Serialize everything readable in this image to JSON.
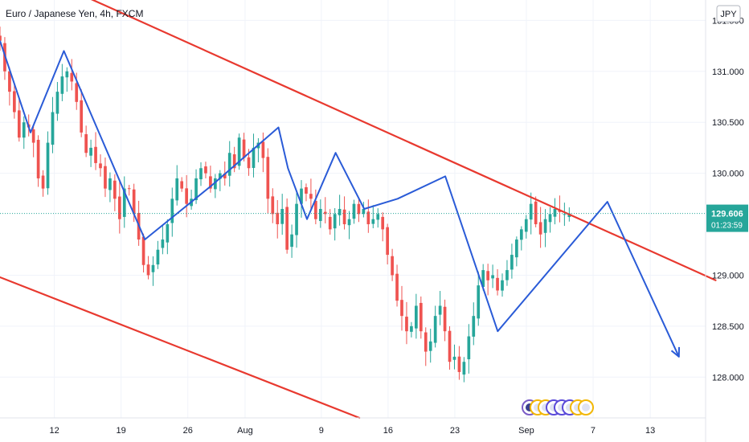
{
  "header": {
    "title": "Euro / Japanese Yen, 4h, FXCM",
    "currency_badge": "JPY"
  },
  "price_label": {
    "price": "129.606",
    "countdown": "01:23:59"
  },
  "colors": {
    "bull": "#26a69a",
    "bear": "#ef5350",
    "channel": "#e8392f",
    "zigzag": "#2a5bd7",
    "price_tag": "#26a69a"
  },
  "icons": [
    "events-icon-1",
    "events-icon-2",
    "events-icon-3",
    "events-icon-4",
    "events-icon-5",
    "events-icon-6",
    "events-icon-7",
    "events-icon-8"
  ],
  "chart_data": {
    "type": "candlestick",
    "x_ticks": [
      {
        "label": "12",
        "t": 12
      },
      {
        "label": "19",
        "t": 19
      },
      {
        "label": "26",
        "t": 26
      },
      {
        "label": "Aug",
        "t": 32
      },
      {
        "label": "9",
        "t": 40
      },
      {
        "label": "16",
        "t": 47
      },
      {
        "label": "23",
        "t": 54
      },
      {
        "label": "Sep",
        "t": 61.5
      },
      {
        "label": "7",
        "t": 68.5
      },
      {
        "label": "13",
        "t": 74.5
      }
    ],
    "y_ticks": [
      {
        "label": "131.500",
        "v": 131.5
      },
      {
        "label": "131.000",
        "v": 131.0
      },
      {
        "label": "130.500",
        "v": 130.5
      },
      {
        "label": "130.000",
        "v": 130.0
      },
      {
        "label": "129.000",
        "v": 129.0
      },
      {
        "label": "128.500",
        "v": 128.5
      },
      {
        "label": "128.000",
        "v": 128.0
      }
    ],
    "x_range": [
      6.3,
      80.3
    ],
    "y_range": [
      127.6,
      131.7
    ],
    "last_price": 129.606,
    "closes": [
      131.3,
      131.0,
      130.8,
      130.6,
      130.35,
      130.5,
      130.45,
      130.3,
      129.95,
      129.85,
      130.3,
      130.6,
      130.8,
      130.95,
      131.0,
      130.9,
      130.7,
      130.4,
      130.2,
      130.25,
      130.1,
      130.05,
      129.85,
      129.95,
      129.75,
      129.55,
      129.85,
      129.85,
      129.6,
      129.35,
      129.1,
      129.0,
      129.1,
      129.25,
      129.35,
      129.5,
      129.75,
      129.95,
      129.85,
      129.7,
      129.75,
      129.95,
      130.05,
      130.0,
      129.85,
      129.95,
      130.0,
      129.95,
      130.2,
      130.05,
      130.35,
      130.15,
      130.05,
      130.25,
      130.3,
      130.15,
      129.75,
      129.6,
      129.5,
      129.65,
      129.25,
      129.4,
      129.7,
      129.85,
      129.8,
      129.75,
      129.55,
      129.65,
      129.6,
      129.45,
      129.6,
      129.65,
      129.5,
      129.55,
      129.7,
      129.6,
      129.65,
      129.5,
      129.55,
      129.6,
      129.45,
      129.2,
      129.0,
      128.75,
      128.6,
      128.45,
      128.5,
      128.7,
      128.45,
      128.25,
      128.35,
      128.6,
      128.7,
      128.45,
      128.15,
      128.2,
      128.05,
      128.15,
      128.4,
      128.6,
      128.9,
      129.05,
      128.95,
      129.0,
      128.85,
      128.95,
      129.05,
      129.2,
      129.35,
      129.45,
      129.55,
      129.7,
      129.5,
      129.4,
      129.55,
      129.6,
      129.65,
      129.62,
      129.6,
      129.606
    ],
    "series": [
      {
        "kind": "channel-line",
        "points": [
          [
            12.25,
            131.86
          ],
          [
            81.35,
            128.95
          ]
        ]
      },
      {
        "kind": "channel-line",
        "points": [
          [
            6.3,
            128.98
          ],
          [
            44.0,
            127.6
          ]
        ]
      },
      {
        "kind": "zigzag",
        "points": [
          [
            6.3,
            131.3
          ],
          [
            9.5,
            130.4
          ],
          [
            13.0,
            131.2
          ],
          [
            21.5,
            129.35
          ],
          [
            28.5,
            129.88
          ],
          [
            35.5,
            130.45
          ],
          [
            36.5,
            130.05
          ],
          [
            38.5,
            129.55
          ],
          [
            41.5,
            130.2
          ],
          [
            44.5,
            129.65
          ],
          [
            48.0,
            129.75
          ],
          [
            53.0,
            129.97
          ],
          [
            58.5,
            128.45
          ],
          [
            70.0,
            129.72
          ],
          [
            77.5,
            128.2
          ]
        ]
      }
    ]
  }
}
